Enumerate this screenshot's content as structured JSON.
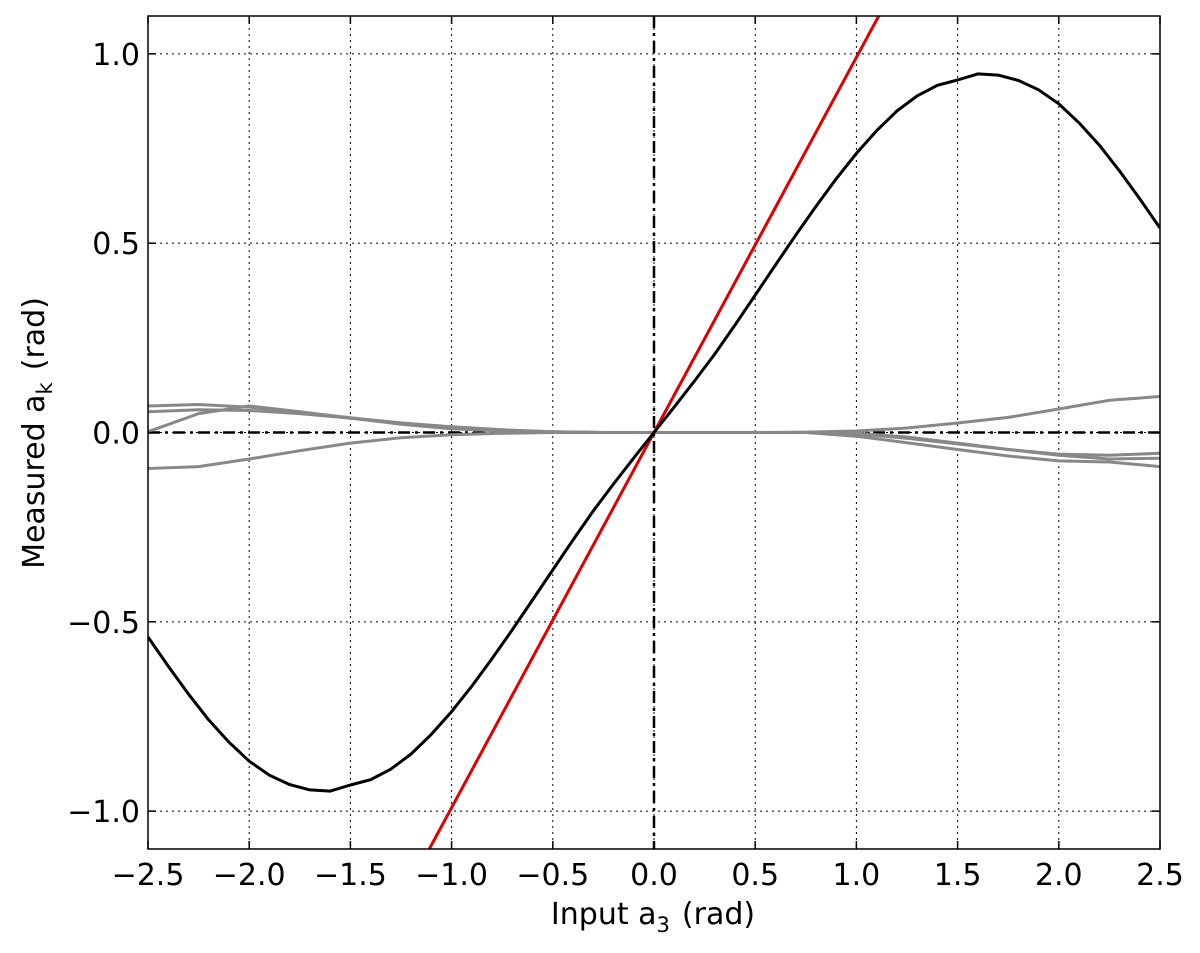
{
  "chart_data": {
    "type": "line",
    "title": "",
    "xlabel": {
      "main": "Input a",
      "sub": "3",
      "unit": "(rad)"
    },
    "ylabel": {
      "main": "Measured a",
      "sub": "k",
      "unit": "(rad)"
    },
    "xlim": [
      -2.5,
      2.5
    ],
    "ylim": [
      -1.1,
      1.1
    ],
    "grid": true,
    "x_ticks": [
      -2.5,
      -2.0,
      -1.5,
      -1.0,
      -0.5,
      0.0,
      0.5,
      1.0,
      1.5,
      2.0,
      2.5
    ],
    "y_ticks": [
      -1.0,
      -0.5,
      0.0,
      0.5,
      1.0
    ],
    "x_tick_labels": [
      "−2.5",
      "−2.0",
      "−1.5",
      "−1.0",
      "−0.5",
      "0.0",
      "0.5",
      "1.0",
      "1.5",
      "2.0",
      "2.5"
    ],
    "y_tick_labels": [
      "−1.0",
      "−0.5",
      "0.0",
      "0.5",
      "1.0"
    ],
    "reference_lines": [
      {
        "orientation": "horizontal",
        "value": 0.0,
        "style": "dashdot",
        "color": "#000000"
      },
      {
        "orientation": "vertical",
        "value": 0.0,
        "style": "dashdot",
        "color": "#000000"
      }
    ],
    "series": [
      {
        "color": "#888888",
        "x": [
          -2.5,
          -2.25,
          -2.0,
          -1.75,
          -1.5,
          -1.25,
          -1.0,
          -0.75,
          -0.5,
          -0.25,
          0.0,
          0.25,
          0.5,
          0.75,
          1.0,
          1.25,
          1.5,
          1.75,
          2.0,
          2.25,
          2.5
        ],
        "y": [
          0.07,
          0.074,
          0.067,
          0.054,
          0.039,
          0.025,
          0.014,
          0.006,
          0.002,
          0.0,
          0.0,
          0.0,
          0.0,
          0.0,
          -0.004,
          -0.015,
          -0.03,
          -0.045,
          -0.057,
          -0.06,
          -0.055
        ]
      },
      {
        "color": "#888888",
        "x": [
          -2.5,
          -2.25,
          -2.0,
          -1.75,
          -1.5,
          -1.25,
          -1.0,
          -0.75,
          -0.5,
          -0.25,
          0.0,
          0.25,
          0.5,
          0.75,
          1.0,
          1.25,
          1.5,
          1.75,
          2.0,
          2.25,
          2.5
        ],
        "y": [
          0.055,
          0.06,
          0.058,
          0.05,
          0.038,
          0.025,
          0.015,
          0.007,
          0.002,
          0.0,
          0.0,
          0.0,
          0.0,
          0.0,
          -0.002,
          -0.012,
          -0.028,
          -0.045,
          -0.06,
          -0.07,
          -0.068
        ]
      },
      {
        "color": "#888888",
        "x": [
          -2.5,
          -2.25,
          -2.0,
          -1.75,
          -1.5,
          -1.25,
          -1.0,
          -0.75,
          -0.5,
          -0.25,
          0.0,
          0.25,
          0.5,
          0.75,
          1.0,
          1.25,
          1.5,
          1.75,
          2.0,
          2.25,
          2.5
        ],
        "y": [
          0.002,
          0.05,
          0.07,
          0.055,
          0.038,
          0.022,
          0.01,
          0.004,
          0.001,
          0.0,
          0.0,
          0.0,
          0.0,
          0.0,
          -0.01,
          -0.027,
          -0.045,
          -0.062,
          -0.075,
          -0.078,
          -0.09
        ]
      },
      {
        "color": "#888888",
        "x": [
          -2.5,
          -2.25,
          -2.0,
          -1.75,
          -1.5,
          -1.25,
          -1.0,
          -0.75,
          -0.5,
          -0.25,
          0.0,
          0.25,
          0.5,
          0.75,
          1.0,
          1.25,
          1.5,
          1.75,
          2.0,
          2.25,
          2.5
        ],
        "y": [
          -0.095,
          -0.09,
          -0.07,
          -0.048,
          -0.028,
          -0.014,
          -0.006,
          -0.002,
          0.0,
          0.0,
          0.0,
          0.0,
          0.0,
          0.001,
          0.004,
          0.012,
          0.025,
          0.04,
          0.062,
          0.085,
          0.095
        ]
      },
      {
        "color": "#e00000",
        "x": [
          -1.11,
          1.11
        ],
        "y": [
          -1.1,
          1.1
        ]
      },
      {
        "color": "#000000",
        "x": [
          -2.5,
          -2.4,
          -2.3,
          -2.2,
          -2.1,
          -2.0,
          -1.9,
          -1.8,
          -1.7,
          -1.6,
          -1.5,
          -1.4,
          -1.3,
          -1.2,
          -1.1,
          -1.0,
          -0.9,
          -0.8,
          -0.7,
          -0.6,
          -0.5,
          -0.4,
          -0.3,
          -0.2,
          -0.1,
          0.0,
          0.1,
          0.2,
          0.3,
          0.4,
          0.5,
          0.6,
          0.7,
          0.8,
          0.9,
          1.0,
          1.1,
          1.2,
          1.3,
          1.4,
          1.5,
          1.6,
          1.7,
          1.8,
          1.9,
          2.0,
          2.1,
          2.2,
          2.3,
          2.4,
          2.5
        ],
        "y": [
          -0.54,
          -0.617,
          -0.691,
          -0.759,
          -0.818,
          -0.868,
          -0.905,
          -0.93,
          -0.944,
          -0.947,
          -0.931,
          -0.917,
          -0.889,
          -0.849,
          -0.797,
          -0.737,
          -0.67,
          -0.597,
          -0.521,
          -0.442,
          -0.363,
          -0.284,
          -0.207,
          -0.136,
          -0.067,
          0.0,
          0.067,
          0.136,
          0.207,
          0.284,
          0.363,
          0.442,
          0.521,
          0.597,
          0.67,
          0.737,
          0.797,
          0.849,
          0.889,
          0.917,
          0.931,
          0.947,
          0.944,
          0.93,
          0.905,
          0.868,
          0.818,
          0.759,
          0.691,
          0.617,
          0.54
        ]
      }
    ]
  }
}
